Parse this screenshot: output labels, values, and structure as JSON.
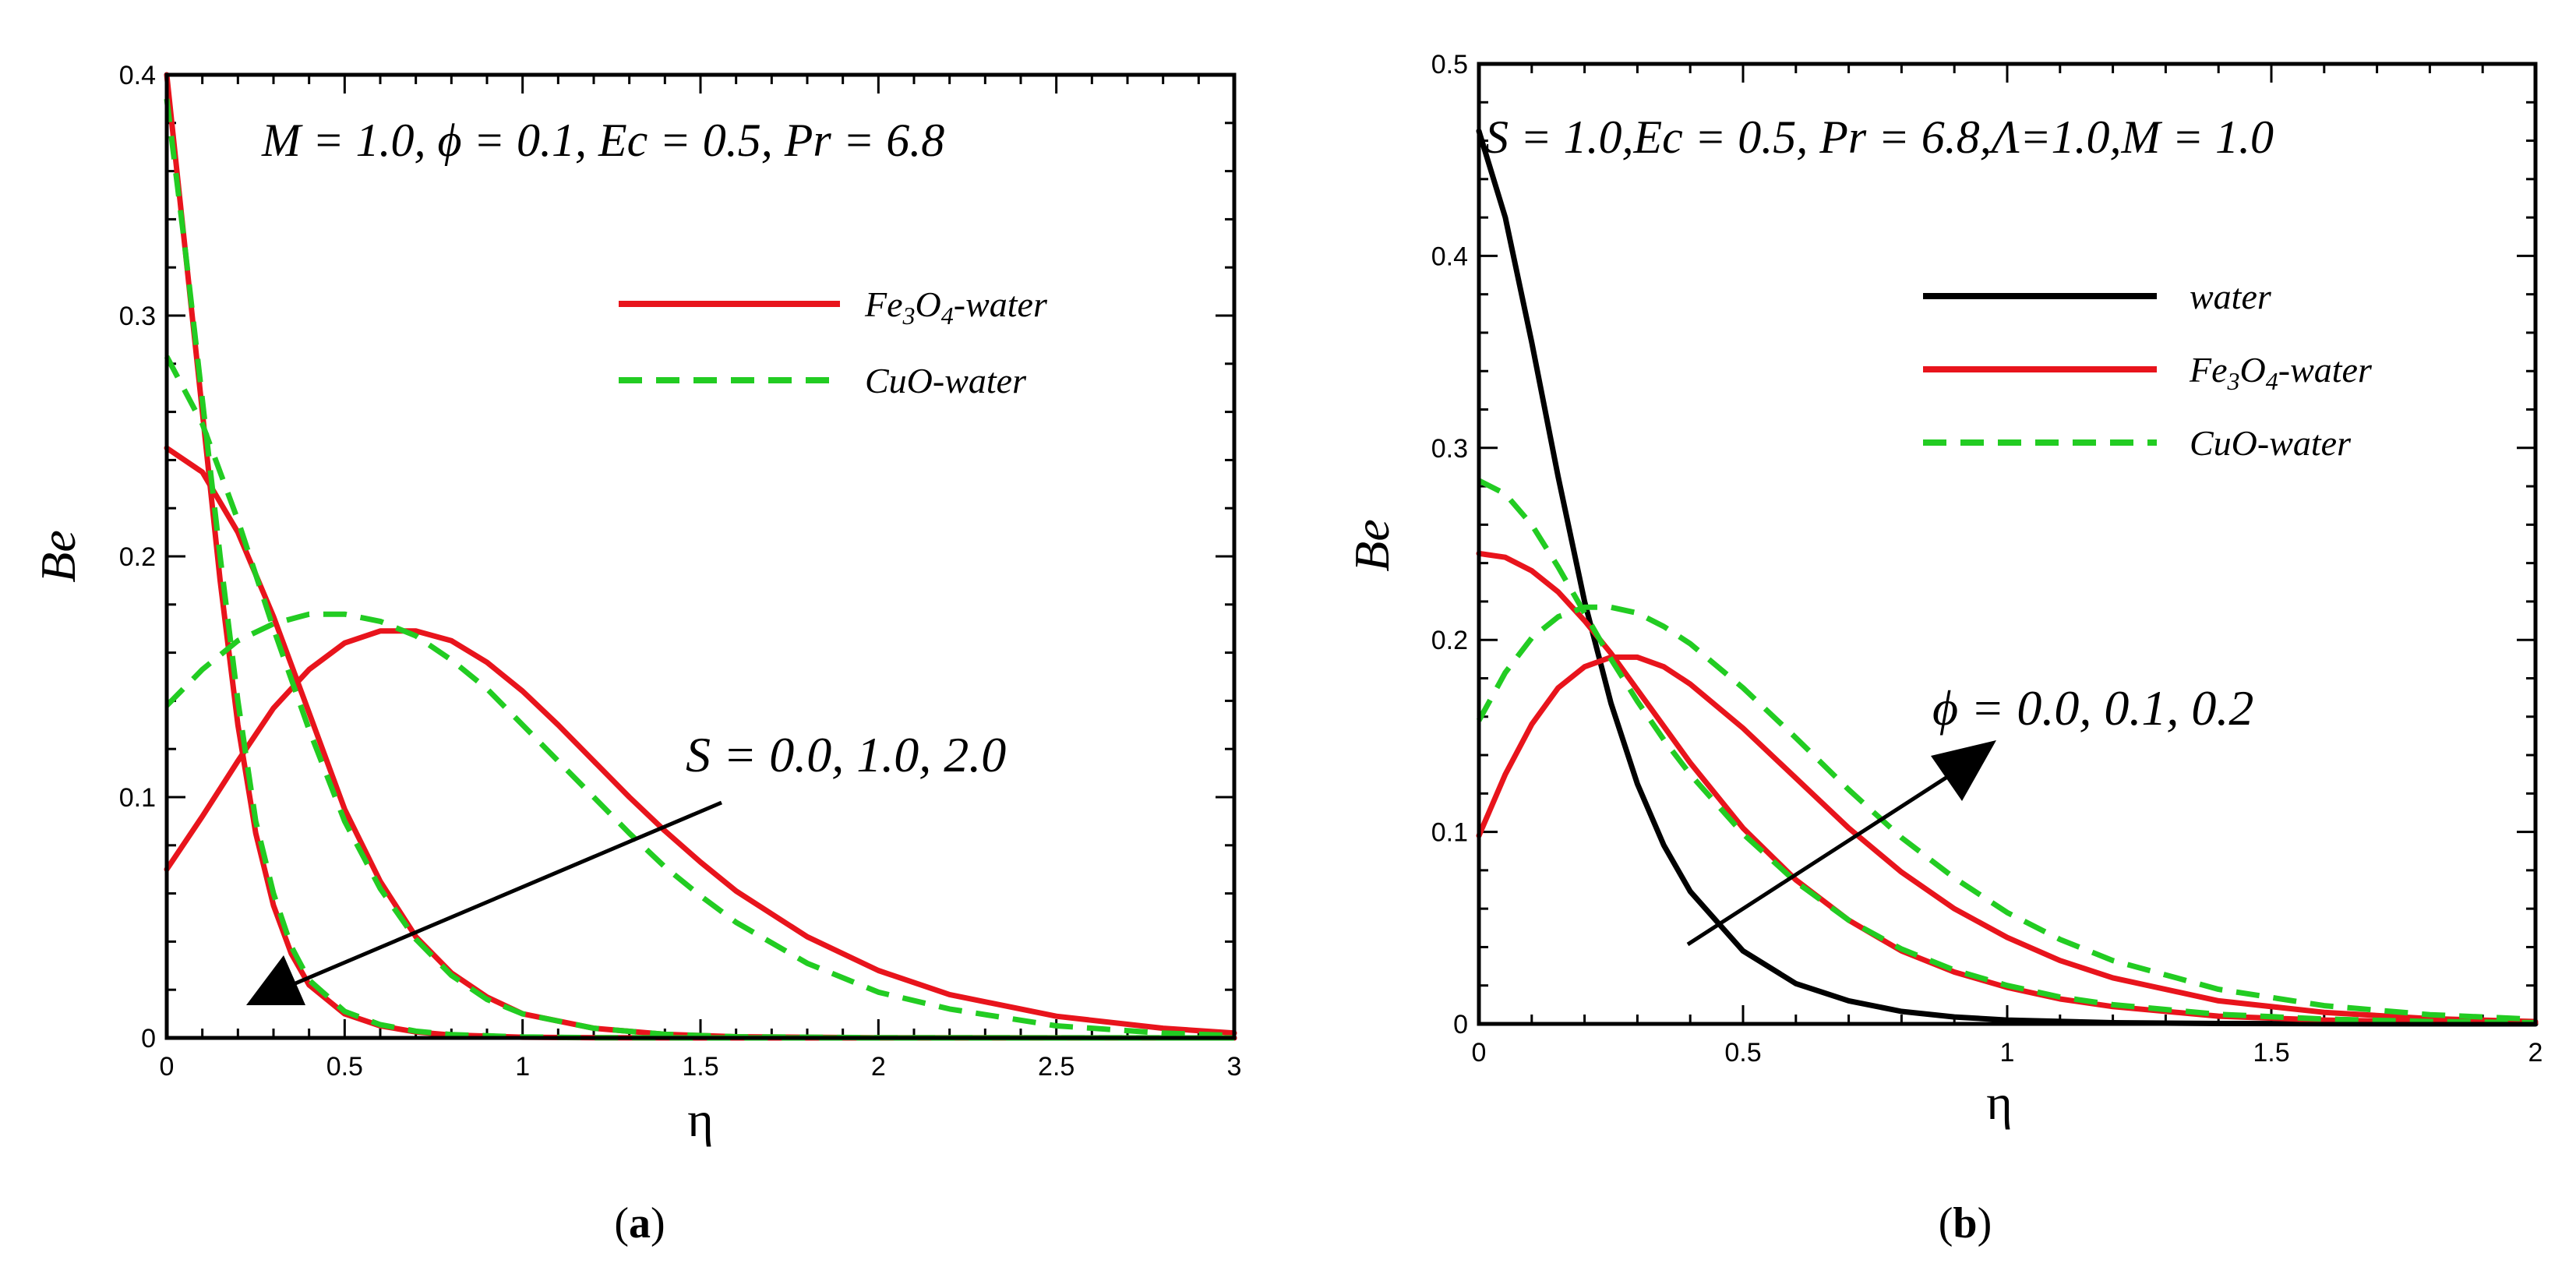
{
  "chart_data": [
    {
      "type": "line",
      "panel_label": "a",
      "annotation": "M = 1.0, ϕ = 0.1, Ec = 0.5, Pr = 6.8",
      "arrow_label": "S = 0.0, 1.0, 2.0",
      "xlabel": "η",
      "ylabel": "Be",
      "xlim": [
        0,
        3
      ],
      "ylim": [
        0,
        0.4
      ],
      "xticks": [
        "0",
        "0.5",
        "1",
        "1.5",
        "2",
        "2.5",
        "3"
      ],
      "yticks": [
        "0",
        "0.1",
        "0.2",
        "0.3",
        "0.4"
      ],
      "legend": [
        {
          "label": "Fe3O4-water",
          "color": "#e8141c",
          "dash": "solid"
        },
        {
          "label": "CuO-water",
          "color": "#22cc22",
          "dash": "dashed"
        }
      ],
      "series": [
        {
          "name": "Fe3O4-water (S=0.0)",
          "color": "#e8141c",
          "dash": "solid",
          "x": [
            0,
            0.05,
            0.1,
            0.15,
            0.2,
            0.25,
            0.3,
            0.35,
            0.4,
            0.5,
            0.6,
            0.7,
            0.8,
            1.0,
            1.2,
            1.5,
            2.0,
            3.0
          ],
          "y": [
            0.4,
            0.33,
            0.26,
            0.19,
            0.13,
            0.085,
            0.055,
            0.035,
            0.022,
            0.01,
            0.005,
            0.0025,
            0.0012,
            0.0003,
            0.0001,
            0.0,
            0.0,
            0.0
          ]
        },
        {
          "name": "CuO-water (S=0.0)",
          "color": "#22cc22",
          "dash": "dashed",
          "x": [
            0,
            0.05,
            0.1,
            0.15,
            0.2,
            0.25,
            0.3,
            0.35,
            0.4,
            0.5,
            0.6,
            0.7,
            0.8,
            1.0,
            1.2,
            1.5,
            2.0,
            3.0
          ],
          "y": [
            0.39,
            0.33,
            0.265,
            0.2,
            0.14,
            0.09,
            0.06,
            0.038,
            0.024,
            0.011,
            0.0055,
            0.0028,
            0.0014,
            0.0004,
            0.0001,
            0.0,
            0.0,
            0.0
          ]
        },
        {
          "name": "Fe3O4-water (S=1.0)",
          "color": "#e8141c",
          "dash": "solid",
          "x": [
            0,
            0.1,
            0.2,
            0.3,
            0.4,
            0.5,
            0.6,
            0.7,
            0.8,
            0.9,
            1.0,
            1.2,
            1.4,
            1.6,
            2.0,
            3.0
          ],
          "y": [
            0.245,
            0.235,
            0.21,
            0.175,
            0.135,
            0.095,
            0.065,
            0.042,
            0.027,
            0.017,
            0.01,
            0.004,
            0.0015,
            0.0005,
            0.0001,
            0.0
          ]
        },
        {
          "name": "CuO-water (S=1.0)",
          "color": "#22cc22",
          "dash": "dashed",
          "x": [
            0,
            0.1,
            0.2,
            0.3,
            0.4,
            0.5,
            0.6,
            0.7,
            0.8,
            0.9,
            1.0,
            1.2,
            1.4,
            1.6,
            2.0,
            3.0
          ],
          "y": [
            0.283,
            0.255,
            0.215,
            0.17,
            0.128,
            0.09,
            0.062,
            0.041,
            0.026,
            0.016,
            0.01,
            0.004,
            0.0015,
            0.0005,
            0.0001,
            0.0
          ]
        },
        {
          "name": "Fe3O4-water (S=2.0)",
          "color": "#e8141c",
          "dash": "solid",
          "x": [
            0,
            0.1,
            0.2,
            0.3,
            0.4,
            0.5,
            0.6,
            0.7,
            0.8,
            0.9,
            1.0,
            1.1,
            1.2,
            1.3,
            1.4,
            1.5,
            1.6,
            1.8,
            2.0,
            2.2,
            2.5,
            2.8,
            3.0
          ],
          "y": [
            0.07,
            0.092,
            0.115,
            0.137,
            0.153,
            0.164,
            0.169,
            0.169,
            0.165,
            0.156,
            0.144,
            0.13,
            0.115,
            0.1,
            0.086,
            0.073,
            0.061,
            0.042,
            0.028,
            0.018,
            0.009,
            0.004,
            0.002
          ]
        },
        {
          "name": "CuO-water (S=2.0)",
          "color": "#22cc22",
          "dash": "dashed",
          "x": [
            0,
            0.1,
            0.2,
            0.3,
            0.4,
            0.5,
            0.6,
            0.7,
            0.8,
            0.9,
            1.0,
            1.1,
            1.2,
            1.3,
            1.4,
            1.5,
            1.6,
            1.8,
            2.0,
            2.2,
            2.5,
            2.8,
            3.0
          ],
          "y": [
            0.138,
            0.153,
            0.165,
            0.172,
            0.176,
            0.176,
            0.173,
            0.167,
            0.157,
            0.145,
            0.13,
            0.115,
            0.1,
            0.085,
            0.071,
            0.059,
            0.048,
            0.031,
            0.019,
            0.012,
            0.005,
            0.002,
            0.001
          ]
        }
      ]
    },
    {
      "type": "line",
      "panel_label": "b",
      "annotation": "S = 1.0,Ec = 0.5, Pr = 6.8,Λ=1.0,M = 1.0",
      "arrow_label": "ϕ = 0.0, 0.1, 0.2",
      "xlabel": "η",
      "ylabel": "Be",
      "xlim": [
        0,
        2
      ],
      "ylim": [
        0,
        0.5
      ],
      "xticks": [
        "0",
        "0.5",
        "1",
        "1.5",
        "2"
      ],
      "yticks": [
        "0",
        "0.1",
        "0.2",
        "0.3",
        "0.4",
        "0.5"
      ],
      "legend": [
        {
          "label": "water",
          "color": "#000000",
          "dash": "solid"
        },
        {
          "label": "Fe3O4-water",
          "color": "#e8141c",
          "dash": "solid"
        },
        {
          "label": "CuO-water",
          "color": "#22cc22",
          "dash": "dashed"
        }
      ],
      "series": [
        {
          "name": "water",
          "color": "#000000",
          "dash": "solid",
          "x": [
            0,
            0.05,
            0.1,
            0.15,
            0.2,
            0.25,
            0.3,
            0.35,
            0.4,
            0.5,
            0.6,
            0.7,
            0.8,
            0.9,
            1.0,
            1.2,
            1.4,
            1.6,
            2.0
          ],
          "y": [
            0.465,
            0.42,
            0.355,
            0.285,
            0.22,
            0.167,
            0.125,
            0.093,
            0.069,
            0.038,
            0.021,
            0.012,
            0.0065,
            0.0036,
            0.002,
            0.0006,
            0.0002,
            0.0001,
            0.0
          ]
        },
        {
          "name": "Fe3O4-water (ϕ=0.1)",
          "color": "#e8141c",
          "dash": "solid",
          "x": [
            0,
            0.05,
            0.1,
            0.15,
            0.2,
            0.25,
            0.3,
            0.35,
            0.4,
            0.5,
            0.6,
            0.7,
            0.8,
            0.9,
            1.0,
            1.1,
            1.2,
            1.4,
            1.6,
            1.8,
            2.0
          ],
          "y": [
            0.245,
            0.243,
            0.236,
            0.225,
            0.21,
            0.193,
            0.174,
            0.155,
            0.136,
            0.102,
            0.075,
            0.054,
            0.038,
            0.027,
            0.019,
            0.013,
            0.009,
            0.004,
            0.002,
            0.001,
            0.0005
          ]
        },
        {
          "name": "CuO-water (ϕ=0.1)",
          "color": "#22cc22",
          "dash": "dashed",
          "x": [
            0,
            0.05,
            0.1,
            0.15,
            0.2,
            0.25,
            0.3,
            0.35,
            0.4,
            0.5,
            0.6,
            0.7,
            0.8,
            0.9,
            1.0,
            1.1,
            1.2,
            1.4,
            1.6,
            1.8,
            2.0
          ],
          "y": [
            0.283,
            0.276,
            0.26,
            0.238,
            0.214,
            0.19,
            0.168,
            0.148,
            0.13,
            0.099,
            0.074,
            0.054,
            0.039,
            0.028,
            0.02,
            0.014,
            0.01,
            0.005,
            0.0025,
            0.0012,
            0.0006
          ]
        },
        {
          "name": "Fe3O4-water (ϕ=0.2)",
          "color": "#e8141c",
          "dash": "solid",
          "x": [
            0,
            0.05,
            0.1,
            0.15,
            0.2,
            0.25,
            0.3,
            0.35,
            0.4,
            0.5,
            0.6,
            0.7,
            0.8,
            0.9,
            1.0,
            1.1,
            1.2,
            1.4,
            1.6,
            1.8,
            2.0
          ],
          "y": [
            0.098,
            0.13,
            0.156,
            0.175,
            0.186,
            0.191,
            0.191,
            0.186,
            0.177,
            0.154,
            0.128,
            0.102,
            0.079,
            0.06,
            0.045,
            0.033,
            0.024,
            0.012,
            0.006,
            0.0027,
            0.0012
          ]
        },
        {
          "name": "CuO-water (ϕ=0.2)",
          "color": "#22cc22",
          "dash": "dashed",
          "x": [
            0,
            0.05,
            0.1,
            0.15,
            0.2,
            0.25,
            0.3,
            0.35,
            0.4,
            0.5,
            0.6,
            0.7,
            0.8,
            0.9,
            1.0,
            1.1,
            1.2,
            1.4,
            1.6,
            1.8,
            2.0
          ],
          "y": [
            0.158,
            0.183,
            0.201,
            0.212,
            0.217,
            0.217,
            0.214,
            0.207,
            0.198,
            0.175,
            0.149,
            0.122,
            0.097,
            0.076,
            0.058,
            0.044,
            0.033,
            0.018,
            0.0095,
            0.0048,
            0.0024
          ]
        }
      ]
    }
  ]
}
